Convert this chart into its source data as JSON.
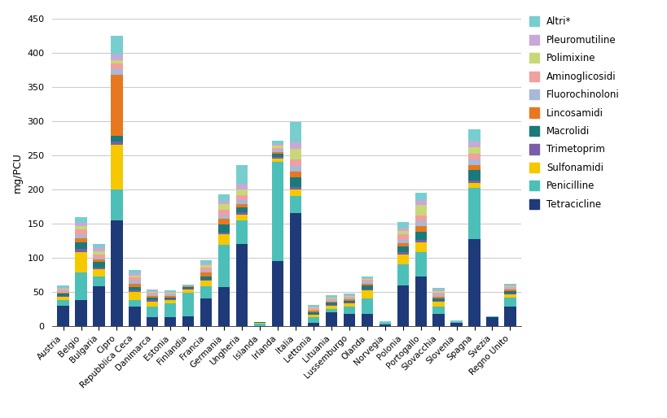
{
  "countries": [
    "Austria",
    "Belgio",
    "Bulgaria",
    "Cipro",
    "Repubblica Ceca",
    "Danimarca",
    "Estonia",
    "Finlandia",
    "Francia",
    "Germania",
    "Ungheria",
    "Islanda",
    "Irlanda",
    "Italia",
    "Lettonia",
    "Lituania",
    "Lussemburgo",
    "Olanda",
    "Norvegia",
    "Polonia",
    "Portogallo",
    "Slovacchia",
    "Slovenia",
    "Spagna",
    "Svezia",
    "Regno Unito"
  ],
  "series": {
    "Tetracicline": [
      30,
      38,
      58,
      155,
      28,
      13,
      13,
      14,
      40,
      57,
      120,
      0,
      95,
      165,
      5,
      20,
      18,
      18,
      2,
      60,
      73,
      18,
      5,
      127,
      13,
      28
    ],
    "Penicilline": [
      8,
      40,
      15,
      45,
      10,
      15,
      20,
      35,
      18,
      62,
      35,
      4,
      145,
      25,
      8,
      5,
      10,
      22,
      3,
      30,
      35,
      10,
      1,
      75,
      1,
      13
    ],
    "Sulfonamidi": [
      5,
      30,
      10,
      65,
      12,
      8,
      5,
      5,
      8,
      15,
      8,
      1,
      5,
      10,
      3,
      5,
      5,
      12,
      0,
      15,
      15,
      8,
      0,
      8,
      0,
      5
    ],
    "Trimetoprim": [
      1,
      5,
      3,
      5,
      2,
      2,
      1,
      1,
      2,
      3,
      3,
      0,
      2,
      3,
      1,
      1,
      1,
      2,
      0,
      3,
      3,
      1,
      0,
      3,
      0,
      2
    ],
    "Macrolidi": [
      3,
      10,
      8,
      8,
      5,
      3,
      3,
      2,
      5,
      12,
      8,
      1,
      5,
      15,
      3,
      3,
      3,
      5,
      0,
      8,
      12,
      3,
      0,
      15,
      0,
      3
    ],
    "Lincosamidi": [
      2,
      5,
      3,
      90,
      5,
      3,
      2,
      1,
      5,
      8,
      5,
      0,
      3,
      8,
      2,
      2,
      2,
      3,
      0,
      5,
      8,
      3,
      0,
      8,
      0,
      2
    ],
    "Fluorochinoloni": [
      2,
      5,
      3,
      8,
      4,
      2,
      2,
      1,
      3,
      5,
      5,
      0,
      3,
      8,
      2,
      2,
      2,
      3,
      0,
      5,
      8,
      3,
      0,
      8,
      0,
      2
    ],
    "Aminoglicosidi": [
      3,
      8,
      5,
      8,
      5,
      3,
      2,
      1,
      5,
      8,
      8,
      0,
      3,
      10,
      2,
      2,
      2,
      3,
      0,
      8,
      8,
      3,
      0,
      8,
      0,
      2
    ],
    "Polimixine": [
      1,
      5,
      5,
      5,
      3,
      1,
      1,
      0,
      3,
      8,
      8,
      0,
      3,
      15,
      1,
      1,
      1,
      1,
      0,
      5,
      15,
      2,
      0,
      10,
      0,
      1
    ],
    "Pleuromutiline": [
      1,
      5,
      5,
      8,
      3,
      1,
      1,
      0,
      2,
      5,
      8,
      0,
      2,
      10,
      1,
      1,
      1,
      1,
      0,
      5,
      8,
      2,
      0,
      8,
      0,
      1
    ],
    "Altri*": [
      3,
      8,
      5,
      28,
      5,
      2,
      2,
      1,
      5,
      10,
      28,
      0,
      5,
      30,
      3,
      3,
      2,
      3,
      2,
      8,
      10,
      3,
      2,
      18,
      0,
      3
    ]
  },
  "colors": {
    "Tetracicline": "#1e3a78",
    "Penicilline": "#4cbfb8",
    "Sulfonamidi": "#f5c800",
    "Trimetoprim": "#7b5ea7",
    "Macrolidi": "#1a7a7a",
    "Lincosamidi": "#e87820",
    "Fluorochinoloni": "#a8b8d8",
    "Aminoglicosidi": "#f0a0a0",
    "Polimixine": "#c8d878",
    "Pleuromutiline": "#c8a8d8",
    "Altri*": "#78cece"
  },
  "ylabel": "mg/PCU",
  "ylim": [
    0,
    450
  ],
  "yticks": [
    0,
    50,
    100,
    150,
    200,
    250,
    300,
    350,
    400,
    450
  ],
  "background_color": "#ffffff",
  "grid_color": "#cccccc"
}
